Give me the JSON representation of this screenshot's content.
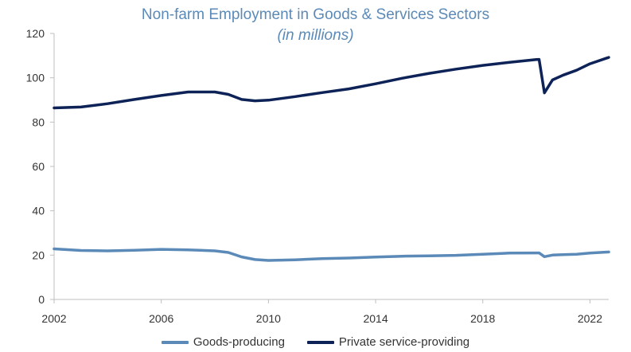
{
  "chart_data": {
    "type": "line",
    "title": "Non-farm Employment in Goods & Services Sectors",
    "subtitle": "(in millions)",
    "xlabel": "",
    "ylabel": "",
    "xlim": [
      2002,
      2022.7
    ],
    "ylim": [
      0,
      120
    ],
    "y_ticks": [
      "0",
      "20",
      "40",
      "60",
      "80",
      "100",
      "120"
    ],
    "x_ticks": [
      "2002",
      "2006",
      "2010",
      "2014",
      "2018",
      "2022"
    ],
    "grid": false,
    "legend_position": "bottom",
    "x": [
      2002,
      2003,
      2004,
      2005,
      2006,
      2007,
      2008,
      2008.5,
      2009,
      2009.5,
      2010,
      2011,
      2012,
      2013,
      2014,
      2015,
      2016,
      2017,
      2018,
      2019,
      2020,
      2020.1,
      2020.3,
      2020.6,
      2021,
      2021.5,
      2022,
      2022.7
    ],
    "series": [
      {
        "name": "Goods-producing",
        "color": "#5b8ab8",
        "values": [
          22.8,
          22.1,
          21.9,
          22.2,
          22.6,
          22.4,
          21.9,
          21.2,
          19.2,
          18.0,
          17.6,
          17.9,
          18.4,
          18.7,
          19.1,
          19.5,
          19.7,
          19.9,
          20.4,
          20.9,
          21.0,
          21.0,
          19.3,
          20.0,
          20.2,
          20.4,
          20.9,
          21.4
        ]
      },
      {
        "name": "Private service-providing",
        "color": "#0d2257",
        "values": [
          86.4,
          86.8,
          88.3,
          90.2,
          92.0,
          93.6,
          93.6,
          92.5,
          90.2,
          89.6,
          89.9,
          91.5,
          93.3,
          95.0,
          97.3,
          99.8,
          102.0,
          103.9,
          105.6,
          107.0,
          108.2,
          108.3,
          93.2,
          99.0,
          101.2,
          103.4,
          106.3,
          109.2
        ]
      }
    ]
  }
}
